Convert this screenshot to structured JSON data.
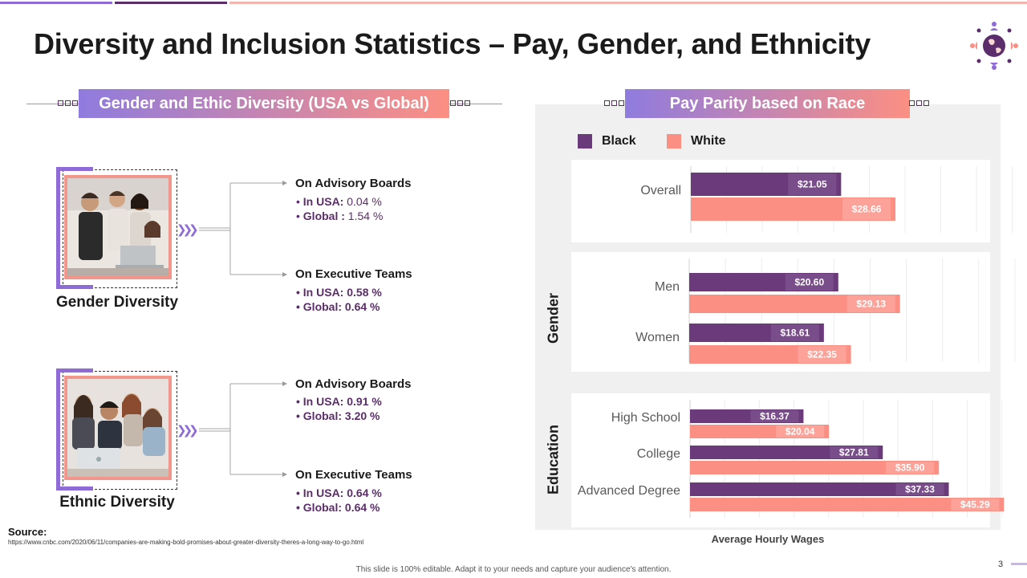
{
  "title": "Diversity and Inclusion Statistics – Pay, Gender, and Ethnicity",
  "colors": {
    "purple": "#6b3a7a",
    "salmon": "#fc8f83",
    "banner_start": "#8f7bde",
    "banner_end": "#fc8f83"
  },
  "left_banner": "Gender and Ethic Diversity (USA vs Global)",
  "right_banner": "Pay Parity based on Race",
  "gender": {
    "caption": "Gender Diversity",
    "advisory": {
      "heading": "On Advisory Boards",
      "usa_label": "In USA:",
      "usa_value": " 0.04 %",
      "global_label": "Global :",
      "global_value": " 1.54 %"
    },
    "executive": {
      "heading": "On Executive Teams",
      "usa_label": "In USA:",
      "usa_value": " 0.58 %",
      "global_label": "Global:",
      "global_value": " 0.64 %"
    }
  },
  "ethnic": {
    "caption": "Ethnic Diversity",
    "advisory": {
      "heading": "On Advisory Boards",
      "usa_label": "In USA:",
      "usa_value": " 0.91 %",
      "global_label": "Global:",
      "global_value": " 3.20 %"
    },
    "executive": {
      "heading": "On Executive Teams",
      "usa_label": "In USA:",
      "usa_value": " 0.64 %",
      "global_label": "Global:",
      "global_value": " 0.64 %"
    }
  },
  "source_label": "Source:",
  "source_url": "https://www.cnbc.com/2020/06/11/companies-are-making-bold-promises-about-greater-diversity-theres-a-long-way-to-go.html",
  "footer": "This slide is 100% editable. Adapt it to your needs and capture your audience's attention.",
  "page_number": "3",
  "chart_data": {
    "type": "bar",
    "orientation": "horizontal",
    "title": "Pay Parity based on Race",
    "xlabel": "Average Hourly Wages",
    "ylabel": "",
    "xlim": [
      0,
      50
    ],
    "grid": true,
    "legend": [
      "Black",
      "White"
    ],
    "legend_position": "top-left",
    "groups": [
      {
        "name": "",
        "categories": [
          "Overall"
        ],
        "series": [
          {
            "name": "Black",
            "values": [
              21.05
            ],
            "labels": [
              "$21.05"
            ]
          },
          {
            "name": "White",
            "values": [
              28.66
            ],
            "labels": [
              "$28.66"
            ]
          }
        ]
      },
      {
        "name": "Gender",
        "categories": [
          "Men",
          "Women"
        ],
        "series": [
          {
            "name": "Black",
            "values": [
              20.6,
              18.61
            ],
            "labels": [
              "$20.60",
              "$18.61"
            ]
          },
          {
            "name": "White",
            "values": [
              29.13,
              22.35
            ],
            "labels": [
              "$29.13",
              "$22.35"
            ]
          }
        ]
      },
      {
        "name": "Education",
        "categories": [
          "High School",
          "College",
          "Advanced Degree"
        ],
        "series": [
          {
            "name": "Black",
            "values": [
              16.37,
              27.81,
              37.33
            ],
            "labels": [
              "$16.37",
              "$27.81",
              "$37.33"
            ]
          },
          {
            "name": "White",
            "values": [
              20.04,
              35.9,
              45.29
            ],
            "labels": [
              "$20.04",
              "$35.90",
              "$45.29"
            ]
          }
        ]
      }
    ]
  }
}
